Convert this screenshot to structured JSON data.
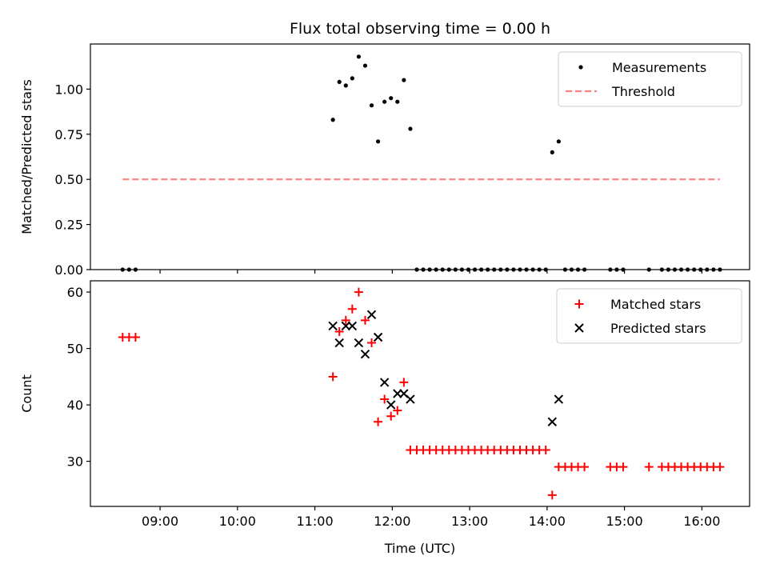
{
  "figure": {
    "title": "Flux total observing time = 0.00 h",
    "colors": {
      "measurement": "#000000",
      "threshold": "#ff8080",
      "matched": "#ff0000",
      "predicted": "#000000"
    }
  },
  "chart_data": [
    {
      "type": "scatter",
      "panel": "top",
      "ylabel": "Matched/Predicted stars",
      "ylim": [
        0.0,
        1.25
      ],
      "xlim": [
        "08:06",
        "16:37"
      ],
      "yticks": [
        "0.00",
        "0.25",
        "0.50",
        "0.75",
        "1.00"
      ],
      "xticks": [
        "09:00",
        "10:00",
        "11:00",
        "12:00",
        "13:00",
        "14:00",
        "15:00",
        "16:00"
      ],
      "xtick_labels_shown": false,
      "grid": false,
      "legend": "top-right",
      "series": [
        {
          "name": "Measurements",
          "marker": "dot",
          "x": [
            "08:31",
            "08:36",
            "08:41",
            "11:14",
            "11:19",
            "11:24",
            "11:29",
            "11:34",
            "11:39",
            "11:44",
            "11:49",
            "11:54",
            "11:59",
            "12:04",
            "12:09",
            "12:14",
            "12:19",
            "12:24",
            "12:29",
            "12:34",
            "12:39",
            "12:44",
            "12:49",
            "12:54",
            "12:59",
            "13:04",
            "13:09",
            "13:14",
            "13:19",
            "13:24",
            "13:29",
            "13:34",
            "13:39",
            "13:44",
            "13:49",
            "13:54",
            "13:59",
            "14:04",
            "14:09",
            "14:14",
            "14:19",
            "14:24",
            "14:29",
            "14:49",
            "14:54",
            "14:59",
            "15:19",
            "15:29",
            "15:34",
            "15:39",
            "15:44",
            "15:49",
            "15:54",
            "15:59",
            "16:04",
            "16:09",
            "16:14"
          ],
          "y": [
            0,
            0,
            0,
            0.83,
            1.04,
            1.02,
            1.06,
            1.18,
            1.13,
            0.91,
            0.71,
            0.93,
            0.95,
            0.93,
            1.05,
            0.78,
            0,
            0,
            0,
            0,
            0,
            0,
            0,
            0,
            0,
            0,
            0,
            0,
            0,
            0,
            0,
            0,
            0,
            0,
            0,
            0,
            0,
            0.65,
            0.71,
            0,
            0,
            0,
            0,
            0,
            0,
            0,
            0,
            0,
            0,
            0,
            0,
            0,
            0,
            0,
            0,
            0,
            0
          ]
        },
        {
          "name": "Threshold",
          "style": "dashed",
          "x": [
            "08:31",
            "16:14"
          ],
          "y": [
            0.5,
            0.5
          ]
        }
      ]
    },
    {
      "type": "scatter",
      "panel": "bottom",
      "xlabel": "Time (UTC)",
      "ylabel": "Count",
      "ylim": [
        22,
        62
      ],
      "xlim": [
        "08:06",
        "16:37"
      ],
      "yticks": [
        "30",
        "40",
        "50",
        "60"
      ],
      "xticks": [
        "09:00",
        "10:00",
        "11:00",
        "12:00",
        "13:00",
        "14:00",
        "15:00",
        "16:00"
      ],
      "grid": false,
      "legend": "top-right",
      "series": [
        {
          "name": "Matched stars",
          "marker": "plus",
          "x": [
            "08:31",
            "08:36",
            "08:41",
            "11:14",
            "11:19",
            "11:24",
            "11:29",
            "11:34",
            "11:39",
            "11:44",
            "11:49",
            "11:54",
            "11:59",
            "12:04",
            "12:09",
            "12:14",
            "12:19",
            "12:24",
            "12:29",
            "12:34",
            "12:39",
            "12:44",
            "12:49",
            "12:54",
            "12:59",
            "13:04",
            "13:09",
            "13:14",
            "13:19",
            "13:24",
            "13:29",
            "13:34",
            "13:39",
            "13:44",
            "13:49",
            "13:54",
            "13:59",
            "14:04",
            "14:09",
            "14:14",
            "14:19",
            "14:24",
            "14:29",
            "14:49",
            "14:54",
            "14:59",
            "15:19",
            "15:29",
            "15:34",
            "15:39",
            "15:44",
            "15:49",
            "15:54",
            "15:59",
            "16:04",
            "16:09",
            "16:14"
          ],
          "y": [
            52,
            52,
            52,
            45,
            53,
            55,
            57,
            60,
            55,
            51,
            37,
            41,
            38,
            39,
            44,
            32,
            32,
            32,
            32,
            32,
            32,
            32,
            32,
            32,
            32,
            32,
            32,
            32,
            32,
            32,
            32,
            32,
            32,
            32,
            32,
            32,
            32,
            24,
            29,
            29,
            29,
            29,
            29,
            29,
            29,
            29,
            29,
            29,
            29,
            29,
            29,
            29,
            29,
            29,
            29,
            29,
            29
          ]
        },
        {
          "name": "Predicted stars",
          "marker": "x",
          "x": [
            "11:14",
            "11:19",
            "11:24",
            "11:29",
            "11:34",
            "11:39",
            "11:44",
            "11:49",
            "11:54",
            "11:59",
            "12:04",
            "12:09",
            "12:14",
            "14:04",
            "14:09"
          ],
          "y": [
            54,
            51,
            54,
            54,
            51,
            49,
            56,
            52,
            44,
            40,
            42,
            42,
            41,
            37,
            41
          ]
        }
      ]
    }
  ]
}
